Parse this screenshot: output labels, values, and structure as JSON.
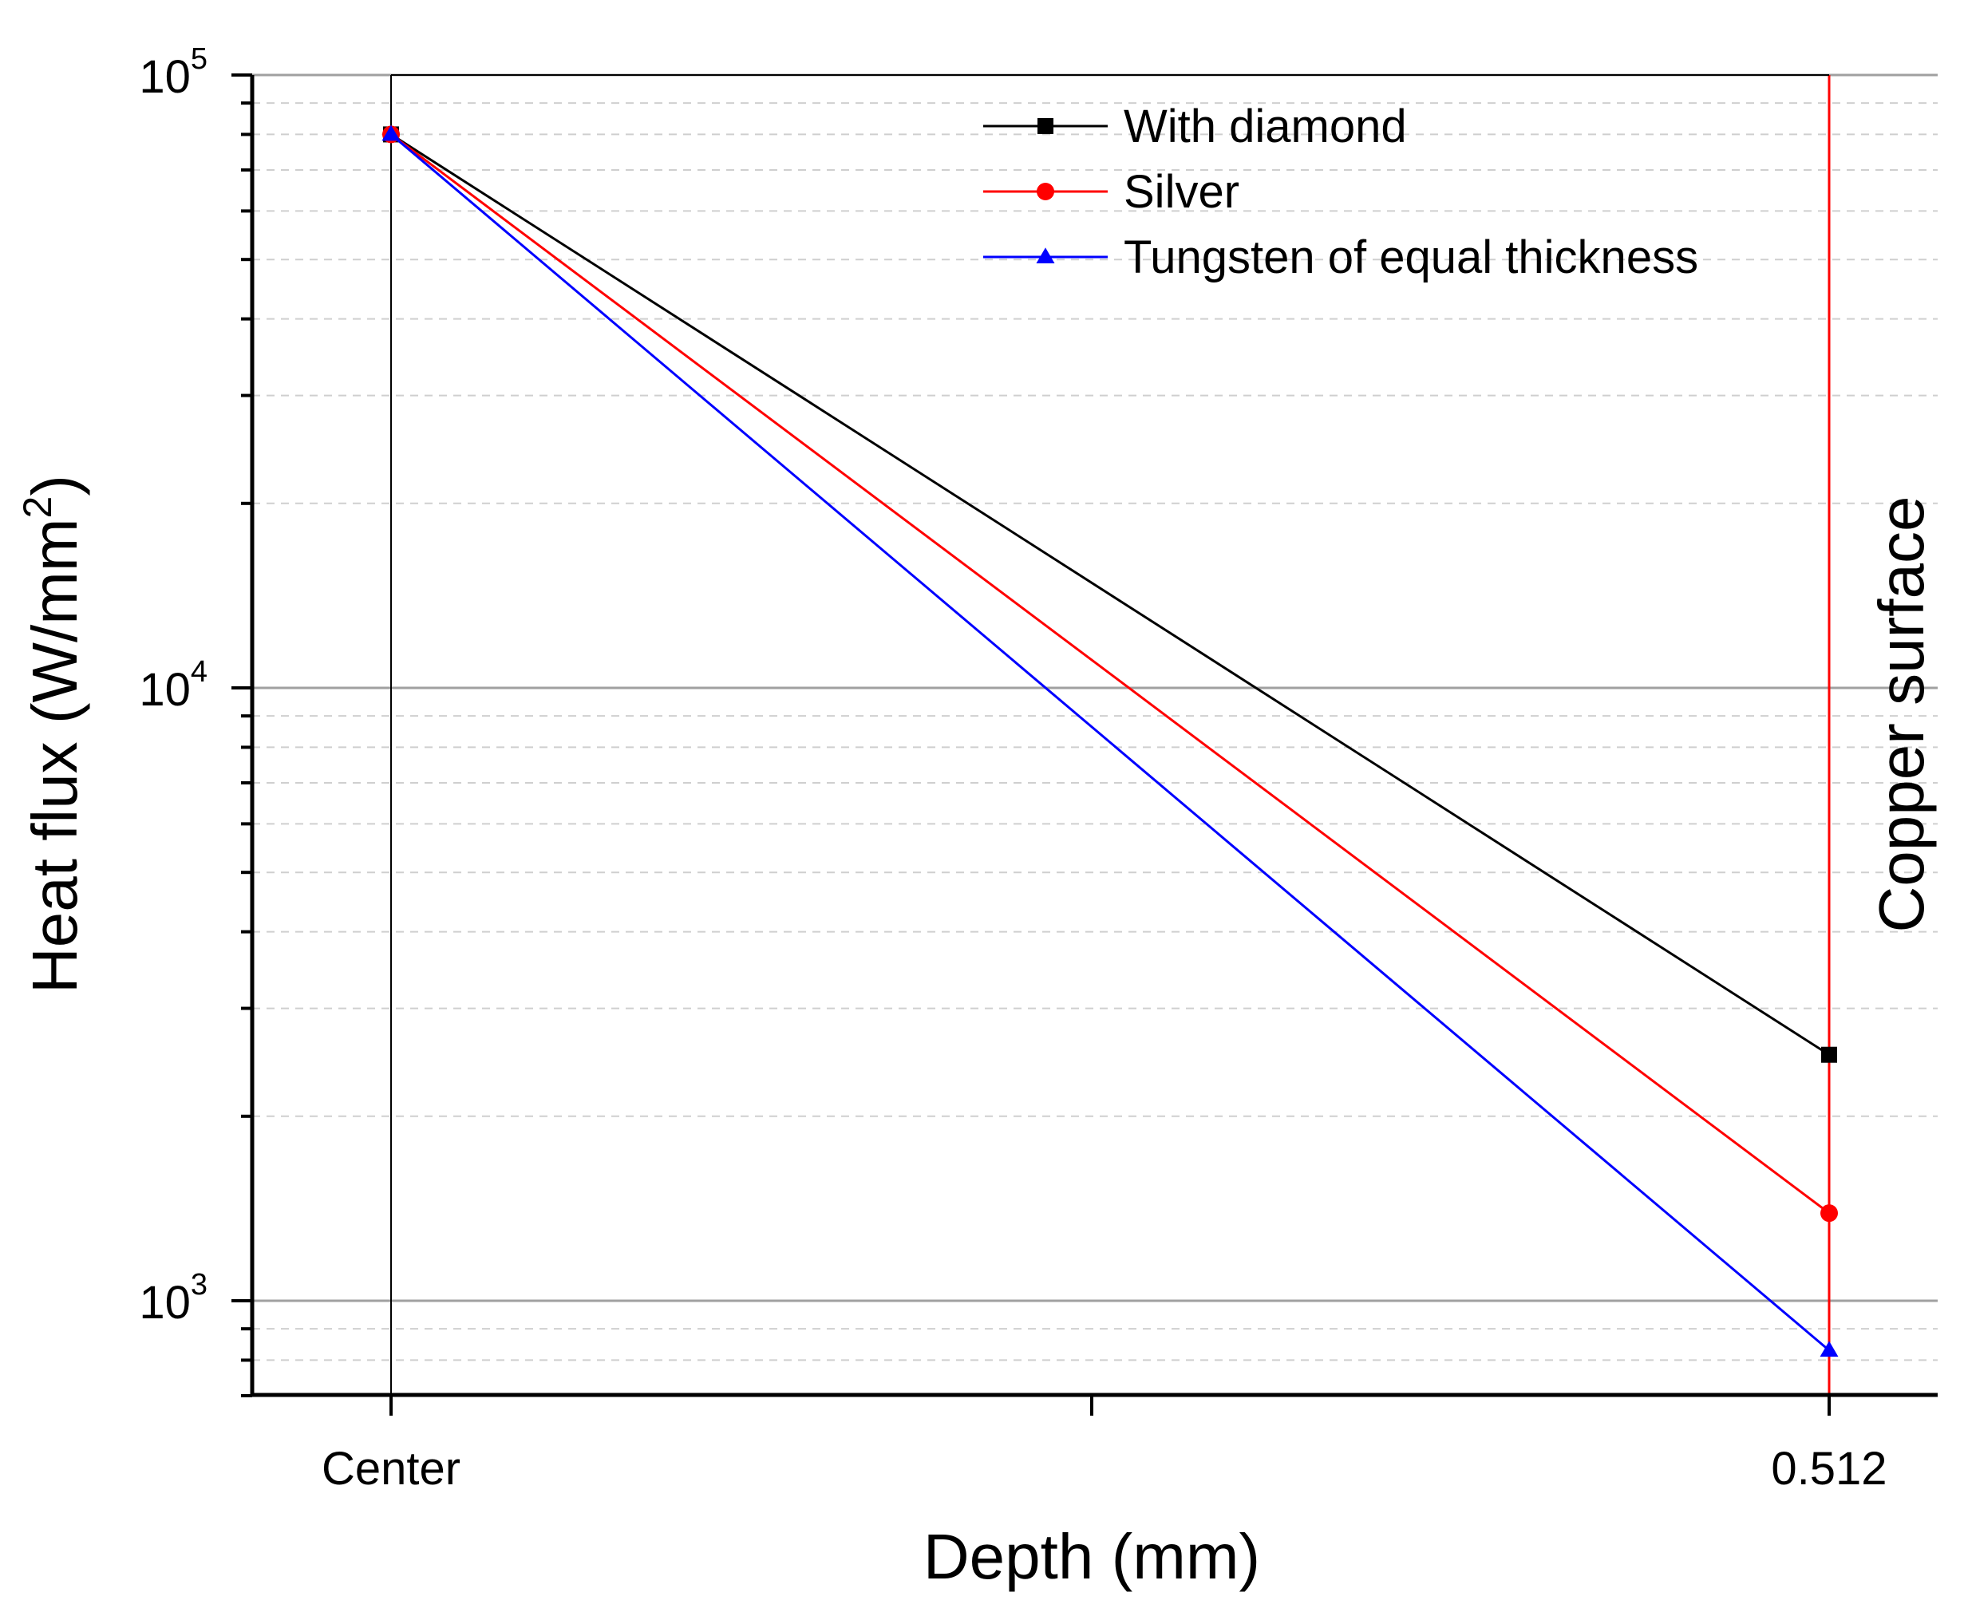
{
  "chart_data": {
    "type": "line",
    "title": "",
    "xlabel": "Depth (mm)",
    "ylabel_main": "Heat flux (W/mm",
    "ylabel_sup": "2",
    "ylabel_close": ")",
    "yscale": "log",
    "ylim": [
      700,
      100000
    ],
    "categories": [
      "Center",
      "0.512"
    ],
    "y_tick_labels": [
      {
        "value": 100000,
        "base": "10",
        "exp": "5"
      },
      {
        "value": 10000,
        "base": "10",
        "exp": "4"
      },
      {
        "value": 1000,
        "base": "10",
        "exp": "3"
      }
    ],
    "series": [
      {
        "name": "With diamond",
        "values": [
          80000,
          2520
        ],
        "color": "#000000",
        "marker": "square"
      },
      {
        "name": "Silver",
        "values": [
          80000,
          1390
        ],
        "color": "#ff0000",
        "marker": "circle"
      },
      {
        "name": "Tungsten of equal thickness",
        "values": [
          80000,
          830
        ],
        "color": "#0000ff",
        "marker": "triangle"
      }
    ],
    "annotations": [
      {
        "text": "Copper surface",
        "at_category": "0.512",
        "color": "#ff0000"
      }
    ],
    "legend_position": "top-right",
    "grid": true
  }
}
